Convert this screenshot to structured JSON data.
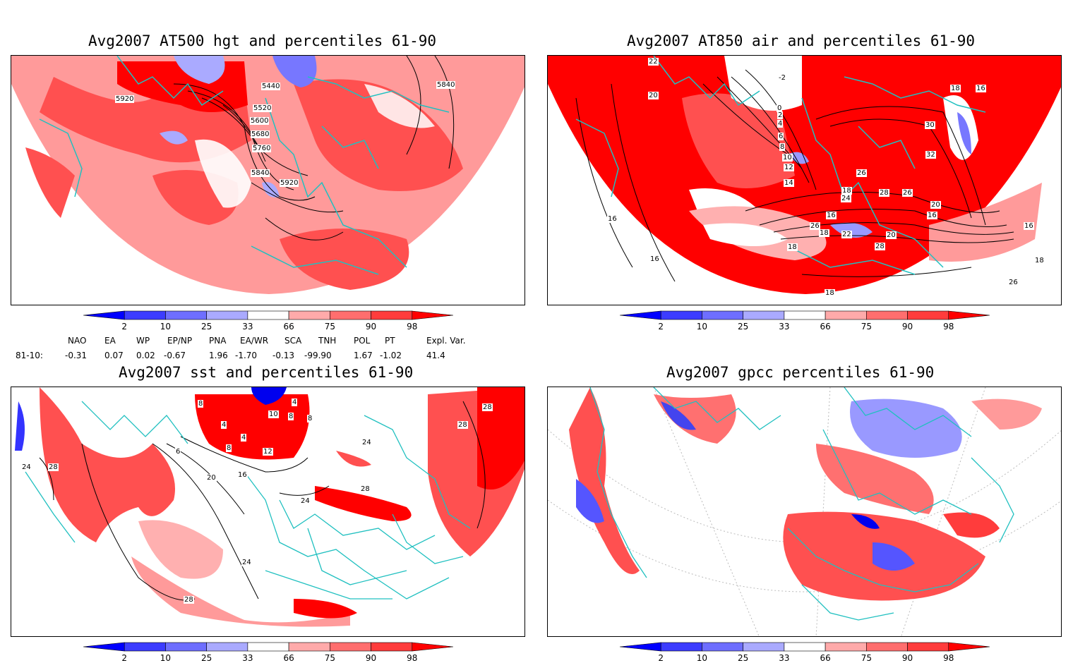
{
  "panels": [
    {
      "title": "Avg2007 AT500 hgt and percentiles 61-90",
      "contour_labels": [
        "5440",
        "5520",
        "5600",
        "5680",
        "5760",
        "5840",
        "5920",
        "5920",
        "5840"
      ]
    },
    {
      "title": "Avg2007 AT850 air and percentiles 61-90",
      "contour_labels": [
        "22",
        "20",
        "-2",
        "0",
        "2",
        "4",
        "6",
        "8",
        "10",
        "12",
        "14",
        "16",
        "18",
        "18",
        "16",
        "16",
        "18",
        "20",
        "22",
        "24",
        "26",
        "28",
        "26",
        "26",
        "28",
        "30",
        "32",
        "20",
        "18",
        "16",
        "16",
        "18",
        "26",
        "18",
        "16"
      ]
    },
    {
      "title": "Avg2007 sst and percentiles 61-90",
      "contour_labels": [
        "24",
        "28",
        "8",
        "4",
        "4",
        "8",
        "6",
        "12",
        "16",
        "20",
        "8",
        "4",
        "10",
        "8",
        "24",
        "28",
        "24",
        "28",
        "28",
        "24",
        "28"
      ]
    },
    {
      "title": "Avg2007 gpcc percentiles 61-90",
      "contour_labels": []
    }
  ],
  "colorbar": {
    "ticks": [
      "2",
      "10",
      "25",
      "33",
      "66",
      "75",
      "90",
      "98"
    ],
    "colors": [
      "#0000ff",
      "#3c3cff",
      "#6e6eff",
      "#aaaaff",
      "#ffffff",
      "#ffaaaa",
      "#ff6e6e",
      "#ff3c3c",
      "#ff0000"
    ]
  },
  "indices": {
    "row_label": "81-10:",
    "headers": [
      "NAO",
      "EA",
      "WP",
      "EP/NP",
      "PNA",
      "EA/WR",
      "SCA",
      "TNH",
      "POL",
      "PT",
      "Expl. Var."
    ],
    "values": [
      "-0.31",
      "0.07",
      "0.02",
      "-0.67",
      "1.96",
      "-1.70",
      "-0.13",
      "-99.90",
      "1.67",
      "-1.02",
      "41.4"
    ]
  },
  "colors": {
    "land_outline": "#20c0c0",
    "strong_red": "#ff0000",
    "light_red": "#ff9a9a",
    "mid_red": "#ff5050",
    "light_blue": "#9999ff",
    "strong_blue": "#0000ee"
  }
}
